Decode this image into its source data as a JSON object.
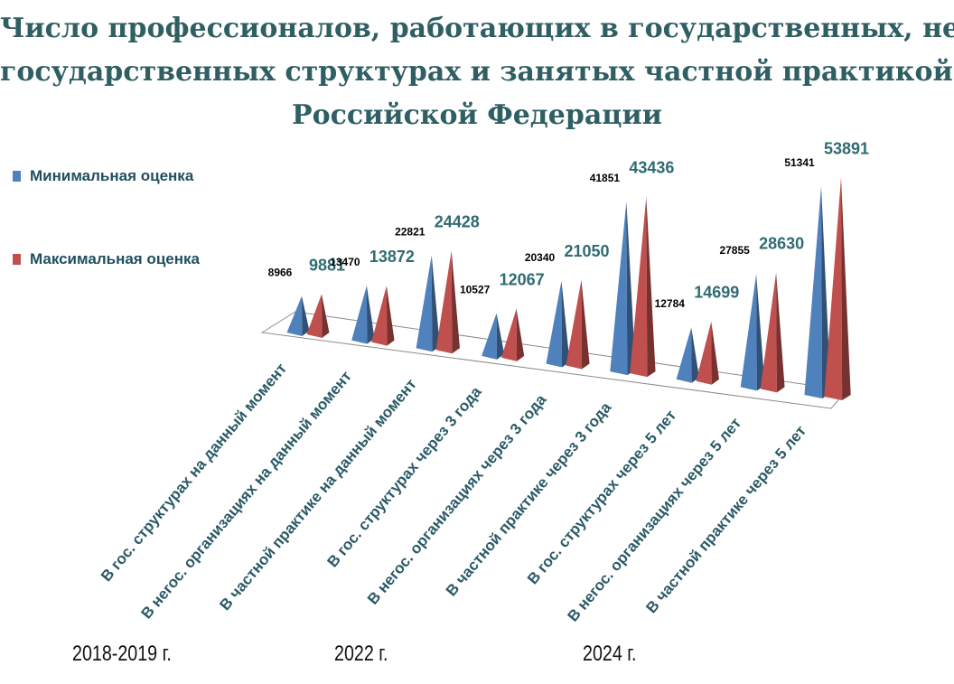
{
  "title_lines": [
    "Число профессионалов, работающих в государственных, не",
    "государственных структурах и занятых частной практикой в",
    "Российской Федерации"
  ],
  "colors": {
    "min": "#4f81bd",
    "max": "#c0504d",
    "title": "#2f5f63"
  },
  "periods": [
    "2018-2019 г.",
    "2022 г.",
    "2024 г."
  ],
  "chart_data": {
    "type": "bar",
    "title": "Число профессионалов, работающих в государственных, не государственных структурах и занятых частной практикой в Российской Федерации",
    "categories": [
      "В гос. структурах на данный момент",
      "В негос. организациях на данный момент",
      "В частной практике на данный момент",
      "В гос. структурах через 3 года",
      "В негос. организациях через 3 года",
      "В частной практике через 3 года",
      "В гос. структурах через 5 лет",
      "В негос. организациях через 5 лет",
      "В частной практике через 5 лет"
    ],
    "series": [
      {
        "name": "Минимальная оценка",
        "values": [
          8966,
          13470,
          22821,
          10527,
          20340,
          41851,
          12784,
          27855,
          51341
        ]
      },
      {
        "name": "Максимальная оценка",
        "values": [
          9881,
          13872,
          24428,
          12067,
          21050,
          43436,
          14699,
          28630,
          53891
        ]
      }
    ],
    "legend": "left",
    "grid": false,
    "ylim": [
      0,
      60000
    ]
  }
}
